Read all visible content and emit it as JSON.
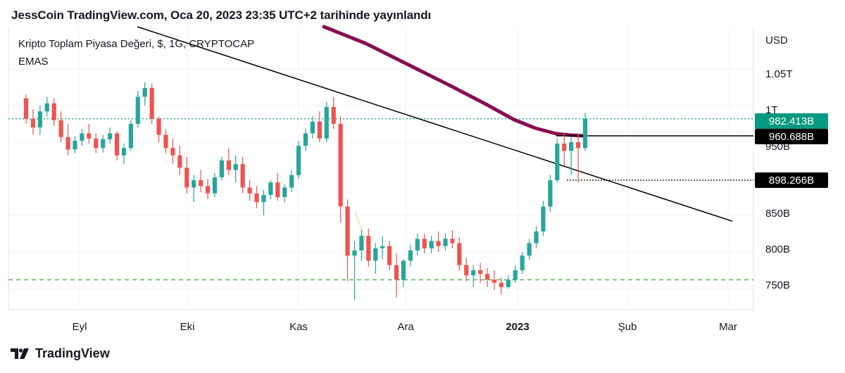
{
  "header": {
    "publisher": "JessCoin TradingView.com, Oca 20, 2023 23:35 UTC+2 tarihinde yayınlandı"
  },
  "legend": {
    "title": "Kripto Toplam Piyasa Değeri, $, 1G, CRYPTOCAP",
    "indicator": "EMAS"
  },
  "footer": {
    "brand": "TradingView"
  },
  "colors": {
    "up": "#26a69a",
    "down": "#ef5350",
    "ema": "#880e4f",
    "current_price_bg": "#089981",
    "support": "#4caf50",
    "label_bg": "#000000"
  },
  "chart_data": {
    "type": "candlestick",
    "currency_label": "USD",
    "y_axis_ticks": [
      "1.05T",
      "1T",
      "950B",
      "850B",
      "800B",
      "750B"
    ],
    "x_axis_ticks": [
      {
        "label": "Eyl",
        "bold": false
      },
      {
        "label": "Eki",
        "bold": false
      },
      {
        "label": "Kas",
        "bold": false
      },
      {
        "label": "Ara",
        "bold": false
      },
      {
        "label": "2023",
        "bold": true
      },
      {
        "label": "Şub",
        "bold": false
      },
      {
        "label": "Mar",
        "bold": false
      }
    ],
    "price_labels": [
      {
        "value": "982.413B",
        "kind": "current"
      },
      {
        "value": "960.688B",
        "kind": "level"
      },
      {
        "value": "898.266B",
        "kind": "level"
      }
    ],
    "support_level": 762,
    "ohlc_series": [
      [
        1010,
        1015,
        975,
        982
      ],
      [
        982,
        995,
        960,
        970
      ],
      [
        970,
        1000,
        960,
        992
      ],
      [
        992,
        1012,
        985,
        1003
      ],
      [
        1003,
        1010,
        972,
        980
      ],
      [
        980,
        992,
        950,
        957
      ],
      [
        957,
        975,
        932,
        940
      ],
      [
        940,
        958,
        935,
        952
      ],
      [
        952,
        968,
        945,
        962
      ],
      [
        962,
        975,
        948,
        955
      ],
      [
        955,
        962,
        935,
        942
      ],
      [
        942,
        960,
        936,
        954
      ],
      [
        954,
        970,
        948,
        962
      ],
      [
        962,
        965,
        925,
        932
      ],
      [
        932,
        948,
        920,
        942
      ],
      [
        942,
        980,
        938,
        975
      ],
      [
        975,
        1020,
        970,
        1012
      ],
      [
        1012,
        1032,
        1000,
        1024
      ],
      [
        1024,
        1030,
        975,
        982
      ],
      [
        982,
        985,
        950,
        960
      ],
      [
        960,
        968,
        935,
        942
      ],
      [
        942,
        955,
        920,
        932
      ],
      [
        932,
        945,
        905,
        915
      ],
      [
        915,
        930,
        880,
        888
      ],
      [
        888,
        905,
        868,
        898
      ],
      [
        898,
        912,
        882,
        890
      ],
      [
        890,
        900,
        872,
        880
      ],
      [
        880,
        908,
        875,
        902
      ],
      [
        902,
        930,
        898,
        925
      ],
      [
        925,
        942,
        905,
        912
      ],
      [
        912,
        932,
        895,
        920
      ],
      [
        920,
        930,
        880,
        888
      ],
      [
        888,
        898,
        870,
        880
      ],
      [
        880,
        890,
        860,
        868
      ],
      [
        868,
        885,
        850,
        878
      ],
      [
        878,
        898,
        872,
        895
      ],
      [
        895,
        908,
        870,
        875
      ],
      [
        875,
        892,
        868,
        888
      ],
      [
        888,
        912,
        882,
        905
      ],
      [
        905,
        952,
        900,
        945
      ],
      [
        945,
        968,
        938,
        962
      ],
      [
        962,
        985,
        955,
        978
      ],
      [
        978,
        992,
        950,
        955
      ],
      [
        955,
        1005,
        950,
        998
      ],
      [
        998,
        1012,
        968,
        975
      ],
      [
        975,
        985,
        840,
        862
      ],
      [
        862,
        872,
        760,
        795
      ],
      [
        795,
        815,
        735,
        802
      ],
      [
        802,
        830,
        788,
        822
      ],
      [
        822,
        832,
        780,
        788
      ],
      [
        788,
        812,
        770,
        805
      ],
      [
        805,
        822,
        790,
        808
      ],
      [
        808,
        815,
        775,
        782
      ],
      [
        782,
        798,
        738,
        762
      ],
      [
        762,
        790,
        752,
        788
      ],
      [
        788,
        810,
        780,
        802
      ],
      [
        802,
        825,
        795,
        818
      ],
      [
        818,
        825,
        798,
        805
      ],
      [
        805,
        822,
        798,
        815
      ],
      [
        815,
        828,
        800,
        808
      ],
      [
        808,
        825,
        802,
        818
      ],
      [
        818,
        830,
        805,
        812
      ],
      [
        812,
        820,
        775,
        782
      ],
      [
        782,
        792,
        760,
        768
      ],
      [
        768,
        782,
        752,
        775
      ],
      [
        775,
        785,
        758,
        770
      ],
      [
        770,
        778,
        752,
        762
      ],
      [
        762,
        775,
        748,
        758
      ],
      [
        758,
        765,
        742,
        752
      ],
      [
        752,
        768,
        750,
        762
      ],
      [
        762,
        782,
        758,
        775
      ],
      [
        775,
        800,
        770,
        795
      ],
      [
        795,
        818,
        790,
        812
      ],
      [
        812,
        835,
        805,
        828
      ],
      [
        828,
        870,
        822,
        862
      ],
      [
        862,
        905,
        855,
        898
      ],
      [
        898,
        955,
        895,
        948
      ],
      [
        948,
        962,
        918,
        938
      ],
      [
        938,
        958,
        905,
        950
      ],
      [
        950,
        962,
        895,
        942
      ],
      [
        942,
        990,
        938,
        982
      ]
    ]
  }
}
